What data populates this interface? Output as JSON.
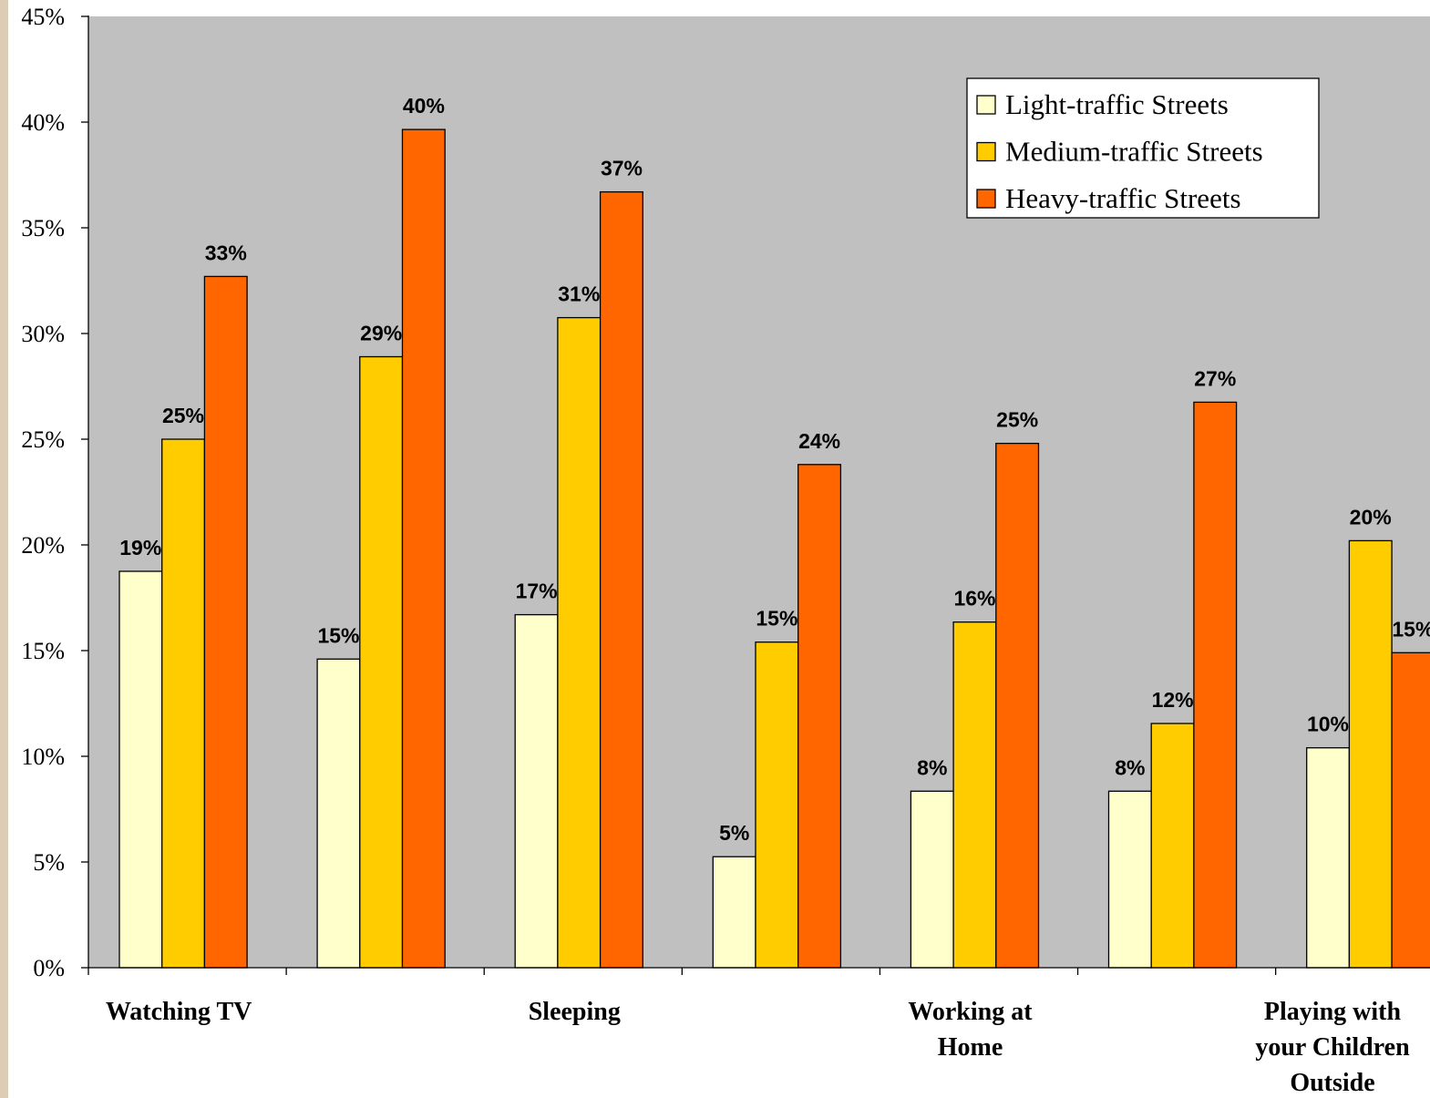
{
  "chart_data": {
    "type": "bar",
    "categories": [
      [
        "Watching TV"
      ],
      [],
      [
        "Sleeping"
      ],
      [],
      [
        "Working at",
        "Home"
      ],
      [],
      [
        "Playing with",
        "your Children",
        "Outside"
      ]
    ],
    "series": [
      {
        "name": "Light-traffic Streets",
        "color": "#FFFFCC",
        "values": [
          18.75,
          14.6,
          16.7,
          5.25,
          8.35,
          8.35,
          10.4
        ],
        "labels": [
          "19%",
          "15%",
          "17%",
          "5%",
          "8%",
          "8%",
          "10%"
        ]
      },
      {
        "name": "Medium-traffic Streets",
        "color": "#FFCC00",
        "values": [
          25.0,
          28.9,
          30.75,
          15.4,
          16.35,
          11.55,
          20.2
        ],
        "labels": [
          "25%",
          "29%",
          "31%",
          "15%",
          "16%",
          "12%",
          "20%"
        ]
      },
      {
        "name": "Heavy-traffic Streets",
        "color": "#FF6600",
        "values": [
          32.7,
          39.65,
          36.7,
          23.8,
          24.8,
          26.75,
          14.9
        ],
        "labels": [
          "33%",
          "40%",
          "37%",
          "24%",
          "25%",
          "27%",
          "15%"
        ]
      }
    ],
    "ylim": [
      0,
      45
    ],
    "yticks": [
      "0%",
      "5%",
      "10%",
      "15%",
      "20%",
      "25%",
      "30%",
      "35%",
      "40%",
      "45%"
    ],
    "legend": "top-right",
    "plot_background": "#C0C0C0",
    "grid": false
  }
}
